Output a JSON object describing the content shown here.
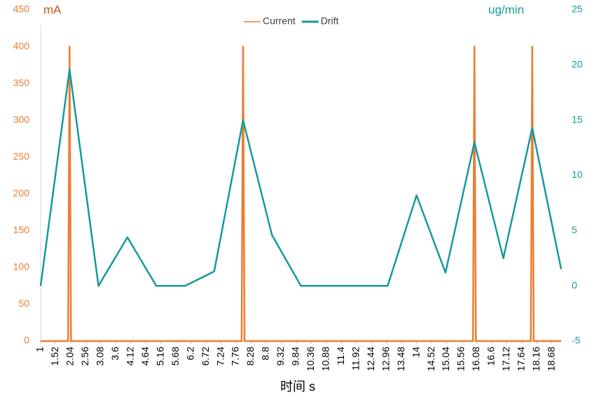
{
  "chart_data": {
    "type": "line",
    "y_label": "mA",
    "y2_label": "ug/min",
    "x_label": "时间 s",
    "xlim": [
      1,
      19
    ],
    "xticks": [
      1,
      1.52,
      2.04,
      2.56,
      3.08,
      3.6,
      4.12,
      4.64,
      5.16,
      5.68,
      6.2,
      6.72,
      7.24,
      7.76,
      8.28,
      8.8,
      9.32,
      9.84,
      10.36,
      10.88,
      11.4,
      11.92,
      12.44,
      12.96,
      13.48,
      14,
      14.52,
      15.04,
      15.56,
      16.08,
      16.6,
      17.12,
      17.64,
      18.16,
      18.68
    ],
    "ylim": [
      0,
      450
    ],
    "yticks": [
      0,
      50,
      100,
      150,
      200,
      250,
      300,
      350,
      400,
      450
    ],
    "y2lim": [
      -5,
      25
    ],
    "y2ticks": [
      -5,
      0,
      5,
      10,
      15,
      20,
      25
    ],
    "series": [
      {
        "name": "Current",
        "color": "#ed7d31",
        "axis": "y",
        "x": [
          1,
          1.95,
          2,
          2.05,
          7.95,
          8,
          8.05,
          15.95,
          16,
          16.05,
          17.95,
          18,
          18.05,
          19
        ],
        "values": [
          0,
          0,
          400,
          0,
          0,
          400,
          0,
          0,
          400,
          0,
          0,
          400,
          0,
          0
        ]
      },
      {
        "name": "Drift",
        "color": "#16999a",
        "axis": "y2",
        "x": [
          1,
          2,
          3,
          4,
          5,
          6,
          7,
          8,
          9,
          10,
          11,
          12,
          13,
          14,
          15,
          16,
          17,
          18,
          19
        ],
        "values": [
          0,
          19.6,
          0,
          4.4,
          0,
          0,
          1.3,
          15,
          4.6,
          0,
          0,
          0,
          0,
          8.2,
          1.2,
          13,
          2.5,
          14.3,
          1.5
        ]
      }
    ]
  }
}
